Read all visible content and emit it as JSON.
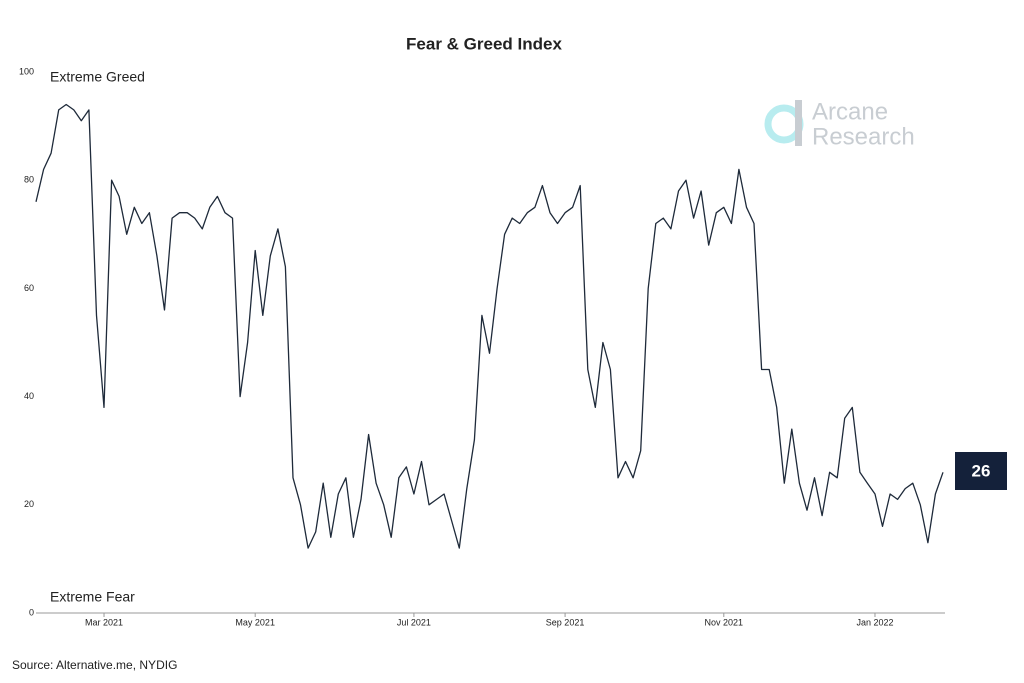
{
  "chart_data": {
    "type": "line",
    "title": "Fear & Greed Index",
    "annotations": {
      "top": "Extreme Greed",
      "bottom": "Extreme Fear"
    },
    "watermark": [
      "Arcane",
      "Research"
    ],
    "source": "Source: Alternative.me, NYDIG",
    "current_value": 26,
    "categories": [
      null,
      null,
      null,
      null,
      null,
      null,
      null,
      null,
      null,
      "Mar 2021",
      null,
      null,
      null,
      null,
      null,
      null,
      null,
      null,
      null,
      null,
      null,
      null,
      null,
      null,
      null,
      null,
      null,
      null,
      null,
      "May 2021",
      null,
      null,
      null,
      null,
      null,
      null,
      null,
      null,
      null,
      null,
      null,
      null,
      null,
      null,
      null,
      null,
      null,
      null,
      null,
      null,
      "Jul 2021",
      null,
      null,
      null,
      null,
      null,
      null,
      null,
      null,
      null,
      null,
      null,
      null,
      null,
      null,
      null,
      null,
      null,
      null,
      null,
      "Sep 2021",
      null,
      null,
      null,
      null,
      null,
      null,
      null,
      null,
      null,
      null,
      null,
      null,
      null,
      null,
      null,
      null,
      null,
      null,
      null,
      null,
      "Nov 2021",
      null,
      null,
      null,
      null,
      null,
      null,
      null,
      null,
      null,
      null,
      null,
      null,
      null,
      null,
      null,
      null,
      null,
      null,
      null,
      "Jan 2022",
      null,
      null,
      null,
      null,
      null,
      null,
      null,
      null,
      null
    ],
    "series": [
      {
        "name": "Fear & Greed Index",
        "color": "#1e2a3a",
        "values": [
          76,
          82,
          85,
          93,
          94,
          93,
          91,
          93,
          55,
          38,
          80,
          77,
          70,
          75,
          72,
          74,
          66,
          56,
          73,
          74,
          74,
          73,
          71,
          75,
          77,
          74,
          73,
          40,
          50,
          67,
          55,
          66,
          71,
          64,
          25,
          20,
          12,
          15,
          24,
          14,
          22,
          25,
          14,
          21,
          33,
          24,
          20,
          14,
          25,
          27,
          22,
          28,
          20,
          21,
          22,
          17,
          12,
          23,
          32,
          55,
          48,
          60,
          70,
          73,
          72,
          74,
          75,
          79,
          74,
          72,
          74,
          75,
          79,
          45,
          38,
          50,
          45,
          25,
          28,
          25,
          30,
          60,
          72,
          73,
          71,
          78,
          80,
          73,
          78,
          68,
          74,
          75,
          72,
          82,
          75,
          72,
          45,
          45,
          38,
          24,
          34,
          24,
          19,
          25,
          18,
          26,
          25,
          36,
          38,
          26,
          24,
          22,
          16,
          22,
          21,
          23,
          24,
          20,
          13,
          22,
          26
        ]
      }
    ],
    "ylim": [
      0,
      100
    ],
    "yticks": [
      0,
      20,
      40,
      60,
      80,
      100
    ],
    "grid": false
  }
}
